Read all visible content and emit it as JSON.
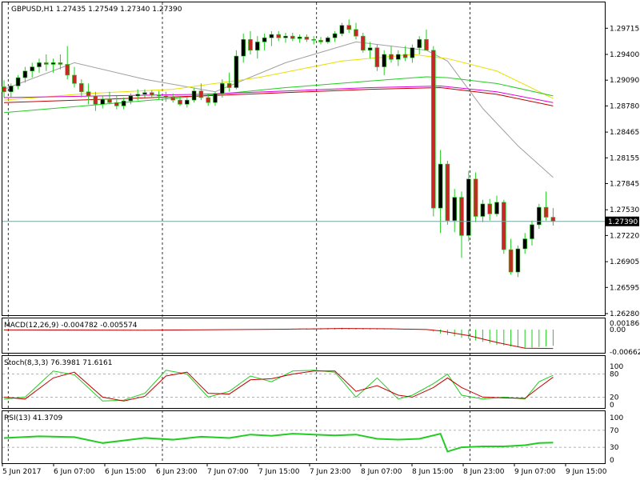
{
  "chart_data": [
    {
      "type": "candlestick",
      "title": "GBPUSD,H1  1.27435 1.27549 1.27340 1.27390",
      "current_price": 1.2739,
      "current_price_label": "1.27390",
      "ylim": [
        1.2628,
        1.2992
      ],
      "y_ticks": [
        "1.29715",
        "1.29400",
        "1.29090",
        "1.28780",
        "1.28465",
        "1.28155",
        "1.27845",
        "1.27530",
        "1.27220",
        "1.26905",
        "1.26595",
        "1.26280"
      ],
      "x_ticks": [
        "5 Jun 2017",
        "6 Jun 07:00",
        "6 Jun 15:00",
        "6 Jun 23:00",
        "7 Jun 07:00",
        "7 Jun 15:00",
        "7 Jun 23:00",
        "8 Jun 07:00",
        "8 Jun 15:00",
        "8 Jun 23:00",
        "9 Jun 07:00",
        "9 Jun 15:00"
      ],
      "candles": [
        [
          1.2901,
          1.2909,
          1.2888,
          1.2895
        ],
        [
          1.2895,
          1.2905,
          1.2888,
          1.2902
        ],
        [
          1.2902,
          1.2915,
          1.2898,
          1.2912
        ],
        [
          1.2912,
          1.2925,
          1.2906,
          1.292
        ],
        [
          1.292,
          1.293,
          1.2912,
          1.2925
        ],
        [
          1.2925,
          1.2935,
          1.2918,
          1.293
        ],
        [
          1.293,
          1.294,
          1.292,
          1.2928
        ],
        [
          1.2928,
          1.2935,
          1.2918,
          1.293
        ],
        [
          1.293,
          1.294,
          1.2922,
          1.2928
        ],
        [
          1.2928,
          1.295,
          1.291,
          1.2915
        ],
        [
          1.2915,
          1.2925,
          1.29,
          1.2905
        ],
        [
          1.2905,
          1.291,
          1.2888,
          1.2895
        ],
        [
          1.2895,
          1.2905,
          1.288,
          1.289
        ],
        [
          1.289,
          1.2895,
          1.2872,
          1.288
        ],
        [
          1.288,
          1.289,
          1.2875,
          1.2886
        ],
        [
          1.2886,
          1.2895,
          1.288,
          1.2882
        ],
        [
          1.2882,
          1.289,
          1.2874,
          1.2878
        ],
        [
          1.2878,
          1.2888,
          1.2874,
          1.2884
        ],
        [
          1.2884,
          1.2893,
          1.288,
          1.289
        ],
        [
          1.289,
          1.2898,
          1.2885,
          1.2892
        ],
        [
          1.2892,
          1.2898,
          1.2888,
          1.2894
        ],
        [
          1.2894,
          1.2897,
          1.2888,
          1.2891
        ],
        [
          1.2891,
          1.2896,
          1.2886,
          1.289
        ],
        [
          1.289,
          1.2895,
          1.2883,
          1.2888
        ],
        [
          1.2888,
          1.2893,
          1.2882,
          1.2885
        ],
        [
          1.2885,
          1.289,
          1.2878,
          1.288
        ],
        [
          1.288,
          1.2888,
          1.2876,
          1.2885
        ],
        [
          1.2885,
          1.29,
          1.2882,
          1.2896
        ],
        [
          1.2896,
          1.2905,
          1.2885,
          1.2888
        ],
        [
          1.2888,
          1.2892,
          1.2878,
          1.2882
        ],
        [
          1.2882,
          1.2895,
          1.2878,
          1.2893
        ],
        [
          1.2893,
          1.291,
          1.2888,
          1.2905
        ],
        [
          1.2905,
          1.2918,
          1.2895,
          1.29
        ],
        [
          1.29,
          1.2945,
          1.2898,
          1.2938
        ],
        [
          1.2938,
          1.2965,
          1.293,
          1.2958
        ],
        [
          1.2958,
          1.2968,
          1.294,
          1.2945
        ],
        [
          1.2945,
          1.2962,
          1.2935,
          1.2955
        ],
        [
          1.2955,
          1.2965,
          1.2945,
          1.296
        ],
        [
          1.296,
          1.2968,
          1.295,
          1.2964
        ],
        [
          1.2964,
          1.2968,
          1.2956,
          1.296
        ],
        [
          1.296,
          1.2966,
          1.2954,
          1.2962
        ],
        [
          1.2962,
          1.2966,
          1.2956,
          1.2959
        ],
        [
          1.2959,
          1.2964,
          1.2954,
          1.2961
        ],
        [
          1.2961,
          1.2964,
          1.2955,
          1.2958
        ],
        [
          1.2958,
          1.2962,
          1.2952,
          1.2957
        ],
        [
          1.2957,
          1.2961,
          1.2952,
          1.2955
        ],
        [
          1.2955,
          1.2962,
          1.2953,
          1.296
        ],
        [
          1.296,
          1.2968,
          1.2955,
          1.2965
        ],
        [
          1.2965,
          1.2978,
          1.2962,
          1.2975
        ],
        [
          1.2975,
          1.2982,
          1.2966,
          1.297
        ],
        [
          1.297,
          1.2978,
          1.2958,
          1.2962
        ],
        [
          1.2962,
          1.2966,
          1.2942,
          1.2945
        ],
        [
          1.2945,
          1.2955,
          1.2935,
          1.2948
        ],
        [
          1.2948,
          1.2952,
          1.292,
          1.2925
        ],
        [
          1.2925,
          1.2945,
          1.2915,
          1.294
        ],
        [
          1.294,
          1.295,
          1.293,
          1.2934
        ],
        [
          1.2934,
          1.2945,
          1.2926,
          1.294
        ],
        [
          1.294,
          1.295,
          1.2932,
          1.2936
        ],
        [
          1.2936,
          1.2952,
          1.293,
          1.2948
        ],
        [
          1.2948,
          1.2962,
          1.294,
          1.2958
        ],
        [
          1.2958,
          1.297,
          1.2945,
          1.2945
        ],
        [
          1.2945,
          1.295,
          1.2745,
          1.2755
        ],
        [
          1.2755,
          1.2825,
          1.2725,
          1.2808
        ],
        [
          1.2808,
          1.2812,
          1.2735,
          1.274
        ],
        [
          1.274,
          1.2778,
          1.2726,
          1.2768
        ],
        [
          1.2768,
          1.2775,
          1.2695,
          1.2722
        ],
        [
          1.2722,
          1.28,
          1.2715,
          1.279
        ],
        [
          1.279,
          1.2798,
          1.2738,
          1.2745
        ],
        [
          1.2745,
          1.2765,
          1.2738,
          1.276
        ],
        [
          1.276,
          1.2766,
          1.274,
          1.2748
        ],
        [
          1.2748,
          1.277,
          1.2745,
          1.2762
        ],
        [
          1.2762,
          1.2765,
          1.27,
          1.2705
        ],
        [
          1.2705,
          1.2718,
          1.2675,
          1.2678
        ],
        [
          1.2678,
          1.271,
          1.2672,
          1.2706
        ],
        [
          1.2706,
          1.2725,
          1.27,
          1.2718
        ],
        [
          1.2718,
          1.274,
          1.271,
          1.2735
        ],
        [
          1.2735,
          1.276,
          1.273,
          1.2756
        ],
        [
          1.2756,
          1.2775,
          1.274,
          1.2744
        ],
        [
          1.2744,
          1.2755,
          1.2734,
          1.2739
        ]
      ],
      "moving_averages": [
        {
          "color": "#a0a0a0",
          "points": [
            [
              0,
              1.2898
            ],
            [
              10,
              1.293
            ],
            [
              20,
              1.291
            ],
            [
              30,
              1.2895
            ],
            [
              40,
              1.293
            ],
            [
              50,
              1.2955
            ],
            [
              60,
              1.2945
            ],
            [
              63,
              1.2932
            ],
            [
              68,
              1.2875
            ],
            [
              73,
              1.283
            ],
            [
              78,
              1.2792
            ]
          ]
        },
        {
          "color": "#e8e000",
          "points": [
            [
              0,
              1.2885
            ],
            [
              12,
              1.2893
            ],
            [
              24,
              1.2898
            ],
            [
              36,
              1.2912
            ],
            [
              48,
              1.2932
            ],
            [
              58,
              1.294
            ],
            [
              63,
              1.2935
            ],
            [
              70,
              1.292
            ],
            [
              78,
              1.2887
            ]
          ]
        },
        {
          "color": "#22cc22",
          "points": [
            [
              0,
              1.287
            ],
            [
              14,
              1.288
            ],
            [
              28,
              1.289
            ],
            [
              40,
              1.29
            ],
            [
              52,
              1.2908
            ],
            [
              60,
              1.2913
            ],
            [
              63,
              1.2912
            ],
            [
              70,
              1.2905
            ],
            [
              78,
              1.289
            ]
          ]
        },
        {
          "color": "#e000e0",
          "points": [
            [
              0,
              1.2888
            ],
            [
              14,
              1.289
            ],
            [
              28,
              1.2892
            ],
            [
              40,
              1.2896
            ],
            [
              52,
              1.29
            ],
            [
              62,
              1.2902
            ],
            [
              70,
              1.2895
            ],
            [
              78,
              1.2882
            ]
          ]
        },
        {
          "color": "#c00000",
          "points": [
            [
              0,
              1.2882
            ],
            [
              14,
              1.2886
            ],
            [
              28,
              1.289
            ],
            [
              40,
              1.2894
            ],
            [
              52,
              1.2898
            ],
            [
              62,
              1.29
            ],
            [
              70,
              1.2892
            ],
            [
              78,
              1.2878
            ]
          ]
        }
      ]
    },
    {
      "type": "bar",
      "title": "MACD(12,26,9) -0.004782 -0.005574",
      "y_ticks": [
        "0.001865",
        "0.00",
        "-0.006629"
      ],
      "ylim": [
        -0.006629,
        0.001865
      ],
      "bar_color": "#22cc22",
      "signal_color": "#c00000",
      "macd_points": [
        [
          0,
          -0.0002
        ],
        [
          20,
          -0.0003
        ],
        [
          40,
          0.0002
        ],
        [
          48,
          0.0005
        ],
        [
          55,
          0.0003
        ],
        [
          60,
          0.0
        ],
        [
          62,
          -0.0012
        ],
        [
          66,
          -0.0028
        ],
        [
          70,
          -0.0045
        ],
        [
          74,
          -0.0055
        ],
        [
          78,
          -0.0048
        ]
      ],
      "signal_points": [
        [
          0,
          -0.0001
        ],
        [
          20,
          -0.0002
        ],
        [
          40,
          0.0001
        ],
        [
          48,
          0.0003
        ],
        [
          55,
          0.0002
        ],
        [
          60,
          0.0
        ],
        [
          62,
          -0.0004
        ],
        [
          66,
          -0.0018
        ],
        [
          70,
          -0.0038
        ],
        [
          74,
          -0.0055
        ],
        [
          78,
          -0.0056
        ]
      ]
    },
    {
      "type": "line",
      "title": "Stoch(8,3,3) 76.3981 71.6161",
      "y_ticks": [
        "100",
        "80",
        "20",
        "0"
      ],
      "ylim": [
        0,
        100
      ],
      "levels": [
        80,
        20
      ],
      "series": [
        {
          "color": "#22cc22",
          "points": [
            [
              0,
              15
            ],
            [
              3,
              20
            ],
            [
              7,
              88
            ],
            [
              10,
              78
            ],
            [
              14,
              10
            ],
            [
              17,
              12
            ],
            [
              20,
              30
            ],
            [
              23,
              90
            ],
            [
              26,
              80
            ],
            [
              29,
              20
            ],
            [
              32,
              35
            ],
            [
              35,
              75
            ],
            [
              38,
              60
            ],
            [
              41,
              88
            ],
            [
              44,
              90
            ],
            [
              47,
              85
            ],
            [
              50,
              20
            ],
            [
              53,
              70
            ],
            [
              56,
              15
            ],
            [
              58,
              25
            ],
            [
              61,
              55
            ],
            [
              63,
              80
            ],
            [
              65,
              25
            ],
            [
              68,
              15
            ],
            [
              71,
              20
            ],
            [
              74,
              15
            ],
            [
              76,
              60
            ],
            [
              78,
              77
            ]
          ]
        },
        {
          "color": "#c00000",
          "points": [
            [
              0,
              20
            ],
            [
              3,
              15
            ],
            [
              7,
              70
            ],
            [
              10,
              85
            ],
            [
              14,
              20
            ],
            [
              17,
              10
            ],
            [
              20,
              22
            ],
            [
              23,
              75
            ],
            [
              26,
              85
            ],
            [
              29,
              30
            ],
            [
              32,
              28
            ],
            [
              35,
              65
            ],
            [
              38,
              68
            ],
            [
              41,
              80
            ],
            [
              44,
              88
            ],
            [
              47,
              88
            ],
            [
              50,
              35
            ],
            [
              53,
              50
            ],
            [
              56,
              25
            ],
            [
              58,
              20
            ],
            [
              61,
              45
            ],
            [
              63,
              70
            ],
            [
              65,
              45
            ],
            [
              68,
              20
            ],
            [
              71,
              18
            ],
            [
              74,
              17
            ],
            [
              76,
              45
            ],
            [
              78,
              72
            ]
          ]
        }
      ]
    },
    {
      "type": "line",
      "title": "RSI(13) 41.3709",
      "y_ticks": [
        "100",
        "70",
        "30",
        "0"
      ],
      "ylim": [
        0,
        100
      ],
      "levels": [
        70,
        30
      ],
      "series": [
        {
          "color": "#22cc22",
          "points": [
            [
              0,
              52
            ],
            [
              5,
              56
            ],
            [
              10,
              54
            ],
            [
              14,
              40
            ],
            [
              17,
              46
            ],
            [
              20,
              52
            ],
            [
              24,
              48
            ],
            [
              28,
              55
            ],
            [
              32,
              52
            ],
            [
              35,
              60
            ],
            [
              38,
              57
            ],
            [
              41,
              62
            ],
            [
              44,
              60
            ],
            [
              47,
              58
            ],
            [
              50,
              60
            ],
            [
              53,
              50
            ],
            [
              56,
              48
            ],
            [
              59,
              50
            ],
            [
              62,
              62
            ],
            [
              63,
              20
            ],
            [
              65,
              30
            ],
            [
              68,
              32
            ],
            [
              71,
              32
            ],
            [
              74,
              35
            ],
            [
              76,
              40
            ],
            [
              78,
              41
            ]
          ]
        }
      ]
    }
  ]
}
